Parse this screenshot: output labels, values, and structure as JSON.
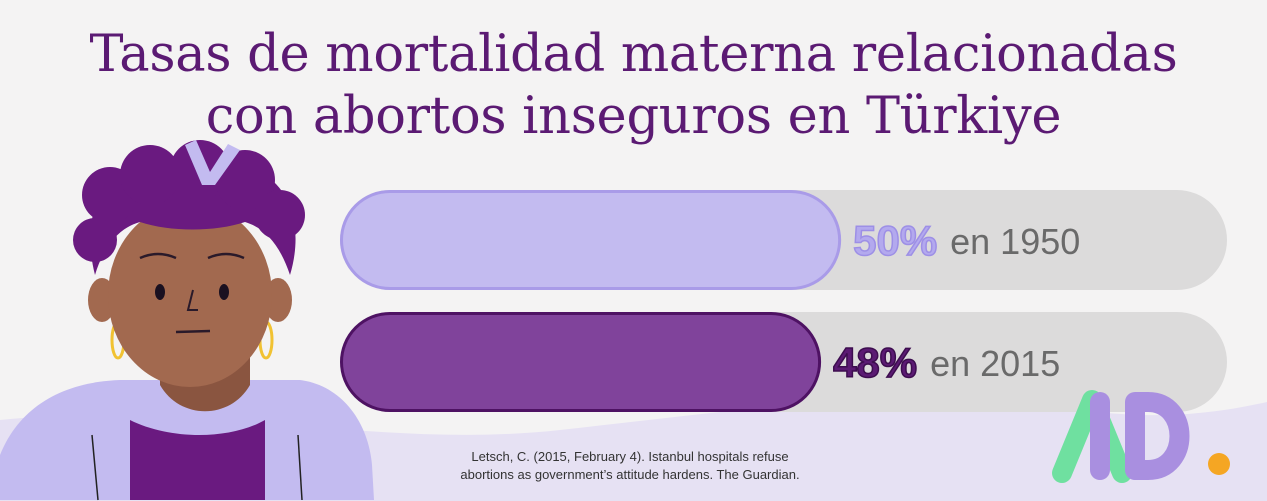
{
  "title_line1": "Tasas de mortalidad materna relacionadas",
  "title_line2": "con abortos inseguros en Türkiye",
  "chart_data": {
    "type": "bar",
    "orientation": "horizontal",
    "categories": [
      "en 1950",
      "en 2015"
    ],
    "values": [
      50,
      48
    ],
    "value_labels": [
      "50%",
      "48%"
    ],
    "xlim": [
      0,
      100
    ],
    "colors": [
      "#c3bbf0",
      "#80439b"
    ],
    "value_label_colors": [
      "#b3a9ee",
      "#5b1a73"
    ],
    "track_color": "#dcdbdb"
  },
  "source_line1": "Letsch, C. (2015, February 4). Istanbul hospitals refuse",
  "source_line2": "abortions as government’s attitude hardens. The Guardian.",
  "logo": {
    "text": "AD.",
    "colors": [
      "#6fe0a0",
      "#a98fe0",
      "#f5a623"
    ]
  }
}
